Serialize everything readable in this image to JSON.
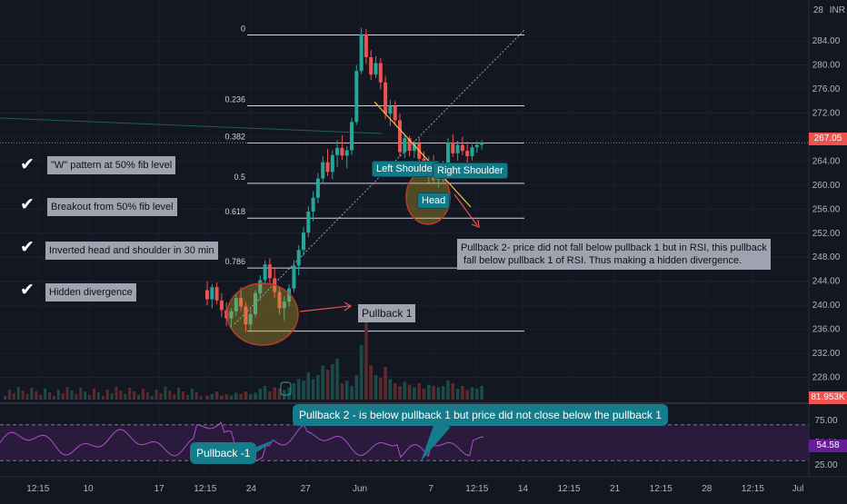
{
  "window": {
    "currency": "INR"
  },
  "chart_data": [
    {
      "type": "candlestick",
      "title": "",
      "y_axis": {
        "range": [
          224,
          289
        ],
        "ticks": [
          "284.00",
          "280.00",
          "276.00",
          "272.00",
          "268.00",
          "264.00",
          "260.00",
          "256.00",
          "252.00",
          "248.00",
          "244.00",
          "240.00",
          "236.00",
          "232.00",
          "228.00"
        ],
        "tick_values": [
          284,
          280,
          276,
          272,
          268,
          264,
          260,
          256,
          252,
          248,
          244,
          240,
          236,
          232,
          228
        ],
        "top_label_partial": "28"
      },
      "x_axis": {
        "ticks": [
          {
            "label": "12:15",
            "i": 3
          },
          {
            "label": "10",
            "i": 15
          },
          {
            "label": "17",
            "i": 32
          },
          {
            "label": "12:15",
            "i": 43
          },
          {
            "label": "24",
            "i": 54
          },
          {
            "label": "27",
            "i": 67
          },
          {
            "label": "Jun",
            "i": 80
          },
          {
            "label": "7",
            "i": 97
          },
          {
            "label": "12:15",
            "i": 108
          },
          {
            "label": "14",
            "i": 119
          },
          {
            "label": "12:15",
            "i": 130
          },
          {
            "label": "21",
            "i": 141
          },
          {
            "label": "12:15",
            "i": 152
          },
          {
            "label": "28",
            "i": 163
          },
          {
            "label": "12:15",
            "i": 174
          }
        ],
        "partial_last": "Jul"
      },
      "current_price": {
        "label": "267.05",
        "value": 267.05
      },
      "volume_label": "81.953K",
      "fib_levels": [
        {
          "label": "0",
          "value": 285
        },
        {
          "label": "0.236",
          "value": 273.2
        },
        {
          "label": "0.382",
          "value": 267
        },
        {
          "label": "0.5",
          "value": 260.3
        },
        {
          "label": "0.618",
          "value": 254.5
        },
        {
          "label": "0.786",
          "value": 246.2
        },
        {
          "label": "",
          "value": 235.7
        }
      ],
      "ohlc": [
        [
          242.5,
          244,
          240,
          241
        ],
        [
          241,
          243.5,
          239.5,
          243
        ],
        [
          243,
          243.8,
          240.2,
          240.8
        ],
        [
          240.8,
          242,
          238,
          239.2
        ],
        [
          239.2,
          240.5,
          236.5,
          237.8
        ],
        [
          237.8,
          239.5,
          236,
          239
        ],
        [
          239,
          241.8,
          238.2,
          241.2
        ],
        [
          241.2,
          243,
          239,
          239.8
        ],
        [
          239.8,
          240.5,
          235.5,
          236.8
        ],
        [
          236.8,
          239.3,
          235.8,
          238.5
        ],
        [
          238.5,
          242.5,
          238,
          242
        ],
        [
          242,
          245,
          240.8,
          244.2
        ],
        [
          244.2,
          247.5,
          243.5,
          246.8
        ],
        [
          246.8,
          247.8,
          243.5,
          244.5
        ],
        [
          244.5,
          246.2,
          241.2,
          242.2
        ],
        [
          242.2,
          243,
          238.5,
          239.5
        ],
        [
          239.5,
          241.5,
          237.5,
          240.6
        ],
        [
          240.6,
          243.5,
          239.8,
          242.8
        ],
        [
          242.8,
          247.5,
          242.2,
          246.6
        ],
        [
          246.6,
          250,
          245,
          249.2
        ],
        [
          249.2,
          253,
          248.2,
          252.1
        ],
        [
          252.1,
          256.5,
          251.3,
          255.6
        ],
        [
          255.6,
          259,
          254,
          257.9
        ],
        [
          257.9,
          262,
          257,
          261.1
        ],
        [
          261.1,
          264.8,
          260.2,
          263.8
        ],
        [
          263.8,
          266,
          261.5,
          262.2
        ],
        [
          262.2,
          265.8,
          261,
          265
        ],
        [
          265,
          267.5,
          263,
          266.2
        ],
        [
          266.2,
          268.3,
          264.2,
          264.9
        ],
        [
          264.9,
          266.5,
          262.8,
          265.8
        ],
        [
          265.8,
          271.2,
          265,
          270.5
        ],
        [
          270.5,
          280,
          270,
          279
        ],
        [
          279,
          286.2,
          278.5,
          285.1
        ],
        [
          285.1,
          286,
          280.2,
          281.3
        ],
        [
          281.3,
          282.5,
          277.5,
          278.4
        ],
        [
          278.4,
          281.5,
          277.8,
          280.3
        ],
        [
          280.3,
          281.2,
          276,
          277.1
        ],
        [
          277.1,
          278.2,
          271,
          271.9
        ],
        [
          271.9,
          274.2,
          269.8,
          273.2
        ],
        [
          273.2,
          274,
          270,
          270.8
        ],
        [
          270.8,
          271.9,
          264.7,
          265.5
        ],
        [
          265.5,
          268.5,
          264.5,
          267.8
        ],
        [
          267.8,
          268.2,
          264.8,
          265.7
        ],
        [
          265.7,
          267.4,
          264.5,
          266.9
        ],
        [
          266.9,
          267.8,
          263.8,
          264.4
        ],
        [
          264.4,
          265.6,
          261.6,
          262.5
        ],
        [
          262.5,
          264.8,
          260.3,
          263.9
        ],
        [
          263.9,
          265,
          260.4,
          260.9
        ],
        [
          260.9,
          262.7,
          259.6,
          261.8
        ],
        [
          261.8,
          264,
          260.5,
          263.4
        ],
        [
          263.4,
          267.8,
          262.6,
          267.1
        ],
        [
          267.1,
          268.5,
          264.7,
          265.3
        ],
        [
          265.3,
          267.4,
          264.1,
          266.7
        ],
        [
          266.7,
          268,
          265,
          265.7
        ],
        [
          265.7,
          267.2,
          263.8,
          264.8
        ],
        [
          264.8,
          266.8,
          264.1,
          266.3
        ],
        [
          266.3,
          267.3,
          265.4,
          266.7
        ],
        [
          266.7,
          267.5,
          265.9,
          267.05
        ]
      ],
      "volume": [
        3,
        4,
        6,
        3,
        4,
        3,
        5,
        4,
        6,
        4,
        5,
        8,
        10,
        6,
        9,
        8,
        7,
        9,
        12,
        15,
        14,
        20,
        15,
        18,
        25,
        22,
        26,
        30,
        12,
        14,
        10,
        18,
        40,
        60,
        25,
        18,
        16,
        24,
        15,
        12,
        10,
        13,
        11,
        9,
        12,
        8,
        11,
        10,
        9,
        10,
        14,
        12,
        8,
        10,
        7,
        9,
        8,
        10
      ],
      "rsi": {
        "ticks": [
          "75.00",
          "50.00",
          "25.00"
        ],
        "tick_values": [
          75,
          50,
          25
        ],
        "current_label": "54.58",
        "current_value": 54.58
      }
    }
  ],
  "annotations": {
    "checklist": [
      "\"W\" pattern at 50% fib level",
      "Breakout from 50% fib level",
      "Inverted head and shoulder in 30 min",
      "Hidden divergence"
    ],
    "pattern_labels": {
      "left_shoulder": "Left Shoulder",
      "head": "Head",
      "right_shoulder": "Right Shoulder"
    },
    "pullback1": "Pullback 1",
    "pullback2_note": "Pullback 2- price did not fall below pullback 1 but in RSI, this pullback\n fall below pullback 1 of RSI. Thus making a hidden divergence.",
    "rsi_pullback2": "Pullback 2 - is below pullback 1 but price did not close below the pullback 1",
    "rsi_pullback1": "Pullback -1"
  },
  "colors": {
    "up": "#26a69a",
    "down": "#ef5350",
    "accent_teal": "#147c8a",
    "rsi_line": "#b04bd0",
    "rsi_band": "#2a1b3d"
  }
}
